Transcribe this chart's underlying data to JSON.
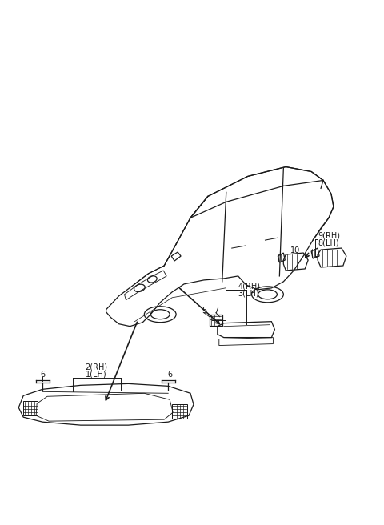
{
  "bg_color": "#ffffff",
  "line_color": "#1a1a1a",
  "font_size": 7,
  "dpi": 100,
  "figsize": [
    4.8,
    6.56
  ],
  "labels": {
    "label_1_2": [
      "2(RH)",
      "1(LH)"
    ],
    "label_3_4": [
      "4(RH)",
      "3(LH)"
    ],
    "label_5": "5",
    "label_7": "7",
    "label_6_left": "6",
    "label_6_right": "6",
    "label_8_9": [
      "9(RH)",
      "8(LH)"
    ],
    "label_10": "10"
  }
}
